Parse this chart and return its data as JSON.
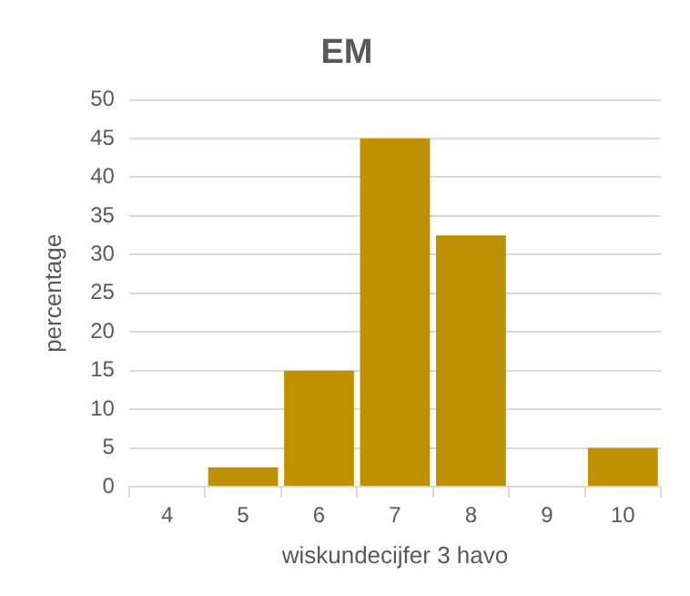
{
  "chart_data": {
    "type": "bar",
    "title": "EM",
    "xlabel": "wiskundecijfer 3 havo",
    "ylabel": "percentage",
    "categories": [
      "4",
      "5",
      "6",
      "7",
      "8",
      "9",
      "10"
    ],
    "values": [
      0,
      2.5,
      15,
      45,
      32.5,
      0,
      5
    ],
    "color": "#bf9000",
    "ylim": [
      0,
      50
    ],
    "yticks": [
      0,
      5,
      10,
      15,
      20,
      25,
      30,
      35,
      40,
      45,
      50
    ],
    "grid": "y"
  }
}
